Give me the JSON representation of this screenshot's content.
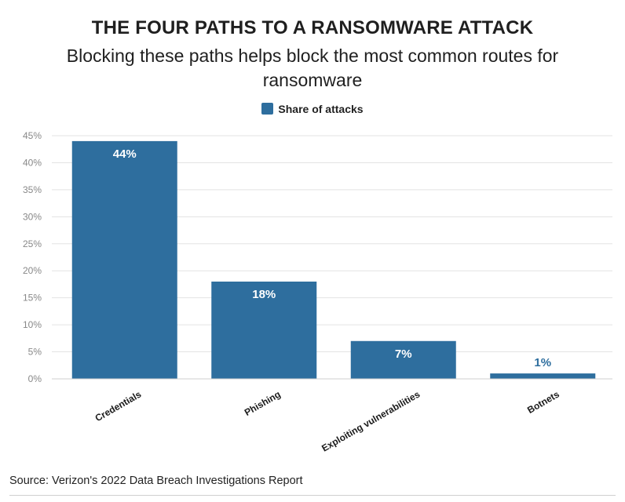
{
  "title": "THE FOUR PATHS TO A RANSOMWARE ATTACK",
  "subtitle": "Blocking these paths helps block the most common routes for ransomware",
  "source": "Source: Verizon's 2022 Data Breach Investigations Report",
  "colors": {
    "bar": "#2e6e9e",
    "grid": "#e3e3e3",
    "tick": "#888888"
  },
  "chart_data": {
    "type": "bar",
    "title": "THE FOUR PATHS TO A RANSOMWARE ATTACK",
    "categories": [
      "Credentials",
      "Phishing",
      "Exploiting vulnerabilities",
      "Botnets"
    ],
    "series": [
      {
        "name": "Share of attacks",
        "values": [
          44,
          18,
          7,
          1
        ]
      }
    ],
    "data_labels": [
      "44%",
      "18%",
      "7%",
      "1%"
    ],
    "ylim": [
      0,
      45
    ],
    "yticks": [
      0,
      5,
      10,
      15,
      20,
      25,
      30,
      35,
      40,
      45
    ],
    "ytick_labels": [
      "0%",
      "5%",
      "10%",
      "15%",
      "20%",
      "25%",
      "30%",
      "35%",
      "40%",
      "45%"
    ],
    "grid": true,
    "legend": "top-center"
  }
}
